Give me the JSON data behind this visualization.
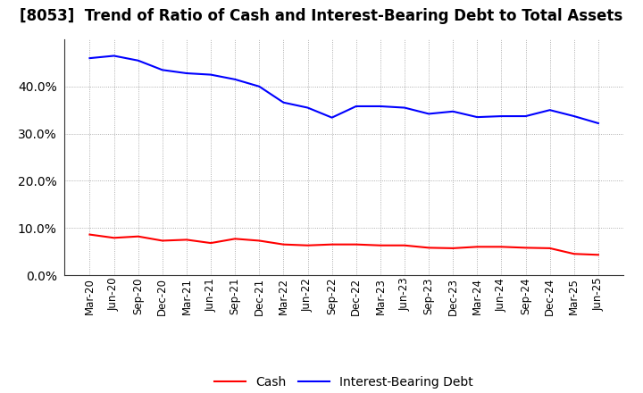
{
  "title": "[8053]  Trend of Ratio of Cash and Interest-Bearing Debt to Total Assets",
  "x_labels": [
    "Mar-20",
    "Jun-20",
    "Sep-20",
    "Dec-20",
    "Mar-21",
    "Jun-21",
    "Sep-21",
    "Dec-21",
    "Mar-22",
    "Jun-22",
    "Sep-22",
    "Dec-22",
    "Mar-23",
    "Jun-23",
    "Sep-23",
    "Dec-23",
    "Mar-24",
    "Jun-24",
    "Sep-24",
    "Dec-24",
    "Mar-25",
    "Jun-25"
  ],
  "cash": [
    0.086,
    0.079,
    0.082,
    0.073,
    0.075,
    0.068,
    0.077,
    0.073,
    0.065,
    0.063,
    0.065,
    0.065,
    0.063,
    0.063,
    0.058,
    0.057,
    0.06,
    0.06,
    0.058,
    0.057,
    0.045,
    0.043
  ],
  "interest_bearing_debt": [
    0.46,
    0.465,
    0.455,
    0.435,
    0.428,
    0.425,
    0.415,
    0.4,
    0.366,
    0.355,
    0.334,
    0.358,
    0.358,
    0.355,
    0.342,
    0.347,
    0.335,
    0.337,
    0.337,
    0.35,
    0.337,
    0.322
  ],
  "cash_color": "#ff0000",
  "debt_color": "#0000ff",
  "background_color": "#ffffff",
  "plot_bg_color": "#ffffff",
  "grid_color": "#999999",
  "ylim": [
    0.0,
    0.5
  ],
  "yticks": [
    0.0,
    0.1,
    0.2,
    0.3,
    0.4
  ],
  "legend_cash": "Cash",
  "legend_debt": "Interest-Bearing Debt",
  "title_fontsize": 12,
  "axis_fontsize": 8.5,
  "ylabel_fontsize": 10
}
